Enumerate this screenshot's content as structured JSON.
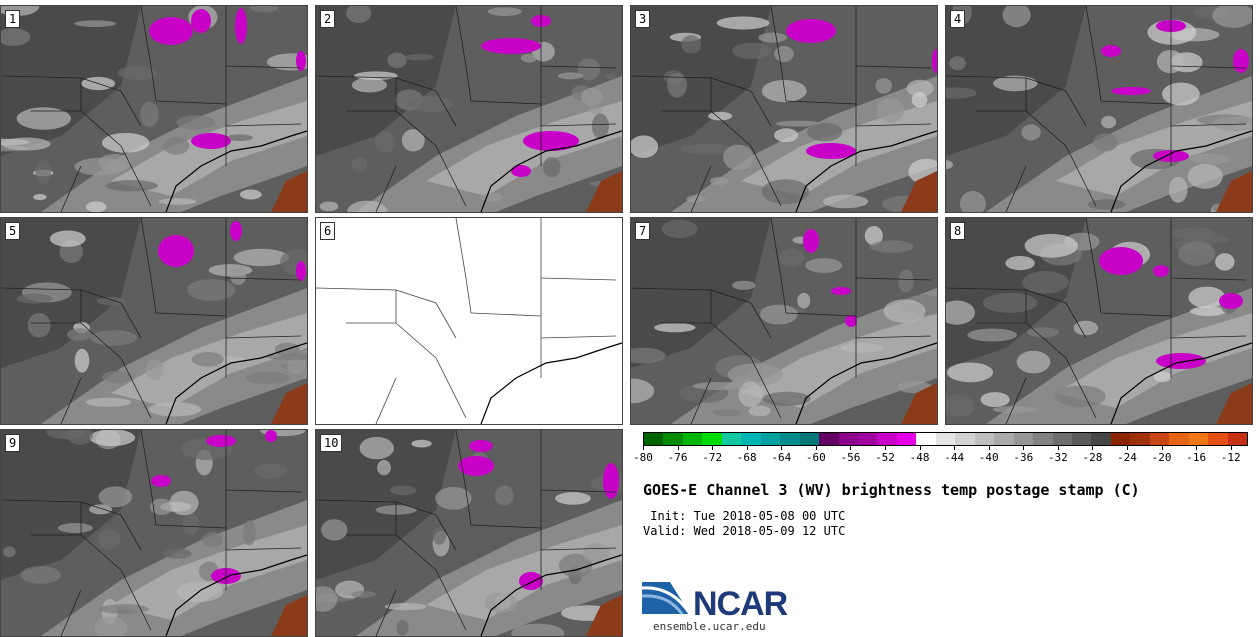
{
  "panels": [
    {
      "label": "1"
    },
    {
      "label": "2"
    },
    {
      "label": "3"
    },
    {
      "label": "4"
    },
    {
      "label": "5"
    },
    {
      "label": "6",
      "empty": true
    },
    {
      "label": "7"
    },
    {
      "label": "8"
    },
    {
      "label": "9"
    },
    {
      "label": "10"
    }
  ],
  "colorbar": {
    "min": -80,
    "max": -10,
    "colors": [
      "#006400",
      "#008c00",
      "#00b400",
      "#00dc00",
      "#14c8a0",
      "#00b4b4",
      "#00a0a0",
      "#008c8c",
      "#007878",
      "#640064",
      "#8c008c",
      "#a000a0",
      "#c800c8",
      "#e600e6",
      "#ffffff",
      "#e6e6e6",
      "#d2d2d2",
      "#bebebe",
      "#aaaaaa",
      "#969696",
      "#828282",
      "#6e6e6e",
      "#5a5a5a",
      "#464646",
      "#8b2500",
      "#a0320a",
      "#c84614",
      "#e66414",
      "#f07814",
      "#e65014",
      "#c83214"
    ],
    "tick_labels": [
      "-80",
      "-76",
      "-72",
      "-68",
      "-64",
      "-60",
      "-56",
      "-52",
      "-48",
      "-44",
      "-40",
      "-36",
      "-32",
      "-28",
      "-24",
      "-20",
      "-16",
      "-12"
    ]
  },
  "title": "GOES-E Channel 3 (WV) brightness temp postage stamp (C)",
  "init": " Init: Tue 2018-05-08 00 UTC",
  "valid": "Valid: Wed 2018-05-09 12 UTC",
  "logo_text": "NCAR",
  "url": "ensemble.ucar.edu"
}
